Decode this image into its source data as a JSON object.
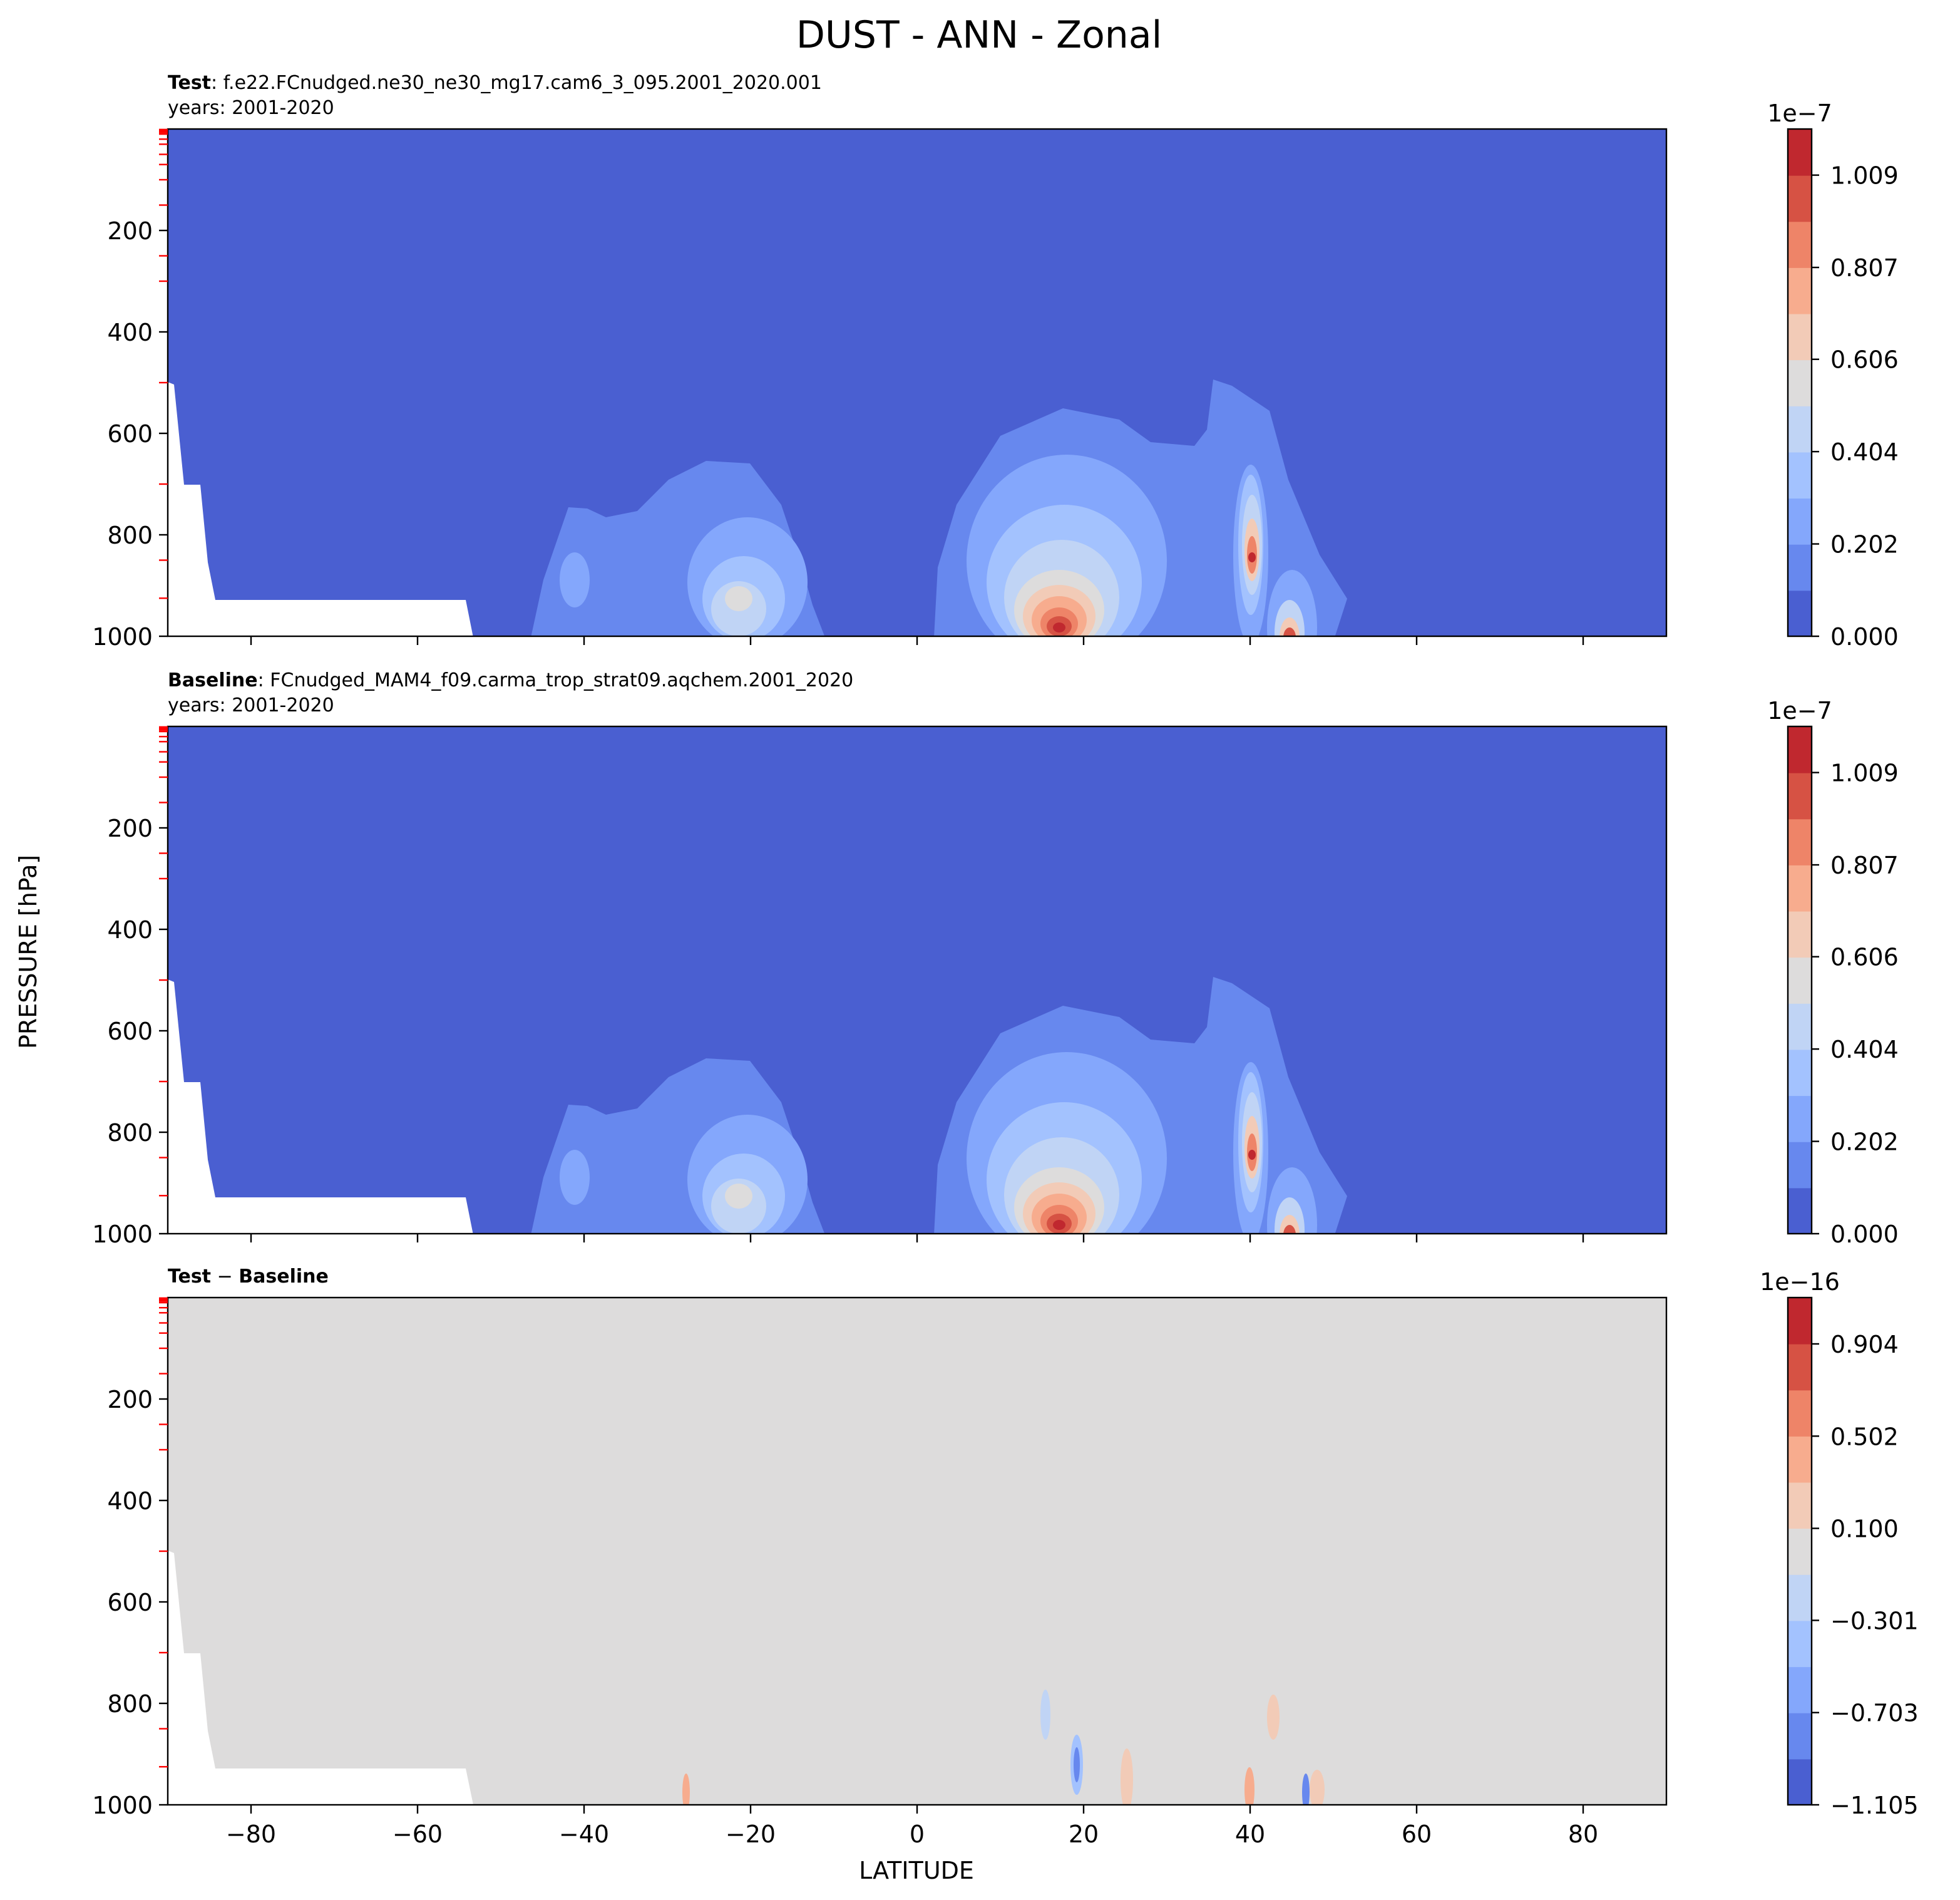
{
  "figure": {
    "title": "DUST - ANN - Zonal",
    "xlabel": "LATITUDE",
    "ylabel": "PRESSURE [hPa]"
  },
  "chart_data": [
    {
      "type": "contour",
      "title": [
        {
          "text": "Test",
          "bold": true
        },
        {
          "text": ": f.e22.FCnudged.ne30_ne30_mg17.cam6_3_095.2001_2020.001",
          "bold": false
        }
      ],
      "subtitle": "years: 2001-2020",
      "xlim": [
        -90,
        90
      ],
      "xticks": [
        {
          "value": -80,
          "label": "−80"
        },
        {
          "value": -60,
          "label": "−60"
        },
        {
          "value": -40,
          "label": "−40"
        },
        {
          "value": -20,
          "label": "−20"
        },
        0,
        20,
        40,
        60,
        80
      ],
      "show_xtick_labels": false,
      "ylim": [
        1000,
        0
      ],
      "yticks": [
        200,
        400,
        600,
        800,
        1000
      ],
      "level_ticks": [
        1,
        2,
        3,
        5,
        7,
        10,
        20,
        30,
        50,
        70,
        100,
        150,
        250,
        300,
        500,
        700,
        850,
        925
      ],
      "level_tick_color": "#ff0000",
      "colorbar": {
        "offset_label": "1e−7",
        "clim": [
          0,
          1.1099
        ],
        "ticks": [
          {
            "value": 0,
            "label": "0.000"
          },
          0.202,
          0.404,
          0.606,
          0.807,
          1.009
        ],
        "colors": [
          "#4a5fd1",
          "#6788ee",
          "#84a7fc",
          "#a3c2fe",
          "#c0d4f5",
          "#dddcdc",
          "#f2cbb7",
          "#f7ac8e",
          "#ee8468",
          "#d65244",
          "#c0282f"
        ]
      }
    },
    {
      "type": "contour",
      "title": [
        {
          "text": "Baseline",
          "bold": true
        },
        {
          "text": ": FCnudged_MAM4_f09.carma_trop_strat09.aqchem.2001_2020",
          "bold": false
        }
      ],
      "subtitle": "years: 2001-2020",
      "xlim": [
        -90,
        90
      ],
      "xticks": [
        {
          "value": -80,
          "label": "−80"
        },
        {
          "value": -60,
          "label": "−60"
        },
        {
          "value": -40,
          "label": "−40"
        },
        {
          "value": -20,
          "label": "−20"
        },
        0,
        20,
        40,
        60,
        80
      ],
      "show_xtick_labels": false,
      "ylim": [
        1000,
        0
      ],
      "yticks": [
        200,
        400,
        600,
        800,
        1000
      ],
      "level_ticks": [
        1,
        2,
        3,
        5,
        7,
        10,
        20,
        30,
        50,
        70,
        100,
        150,
        250,
        300,
        500,
        700,
        850,
        925
      ],
      "level_tick_color": "#ff0000",
      "colorbar": {
        "offset_label": "1e−7",
        "clim": [
          0,
          1.1099
        ],
        "ticks": [
          {
            "value": 0,
            "label": "0.000"
          },
          0.202,
          0.404,
          0.606,
          0.807,
          1.009
        ],
        "colors": [
          "#4a5fd1",
          "#6788ee",
          "#84a7fc",
          "#a3c2fe",
          "#c0d4f5",
          "#dddcdc",
          "#f2cbb7",
          "#f7ac8e",
          "#ee8468",
          "#d65244",
          "#c0282f"
        ]
      }
    },
    {
      "type": "contour",
      "title": [
        {
          "text": "Test",
          "bold": true
        },
        {
          "text": " − ",
          "bold": false
        },
        {
          "text": "Baseline",
          "bold": true
        }
      ],
      "xlim": [
        -90,
        90
      ],
      "xticks": [
        {
          "value": -80,
          "label": "−80"
        },
        {
          "value": -60,
          "label": "−60"
        },
        {
          "value": -40,
          "label": "−40"
        },
        {
          "value": -20,
          "label": "−20"
        },
        0,
        20,
        40,
        60,
        80
      ],
      "show_xtick_labels": true,
      "ylim": [
        1000,
        0
      ],
      "yticks": [
        200,
        400,
        600,
        800,
        1000
      ],
      "level_ticks": [
        1,
        2,
        3,
        5,
        7,
        10,
        20,
        30,
        50,
        70,
        100,
        150,
        250,
        300,
        500,
        700,
        850,
        925
      ],
      "level_tick_color": "#ff0000",
      "colorbar": {
        "offset_label": "1e−16",
        "clim": [
          -1.105,
          1.106
        ],
        "ticks": [
          {
            "value": -1.105,
            "label": "−1.105"
          },
          {
            "value": -0.703,
            "label": "−0.703"
          },
          {
            "value": -0.301,
            "label": "−0.301"
          },
          {
            "value": 0.1,
            "label": "0.100"
          },
          0.502,
          0.904
        ],
        "colors": [
          "#4a5fd1",
          "#6788ee",
          "#84a7fc",
          "#a3c2fe",
          "#c0d4f5",
          "#dddcdc",
          "#f2cbb7",
          "#f7ac8e",
          "#ee8468",
          "#d65244",
          "#c0282f"
        ]
      }
    }
  ]
}
